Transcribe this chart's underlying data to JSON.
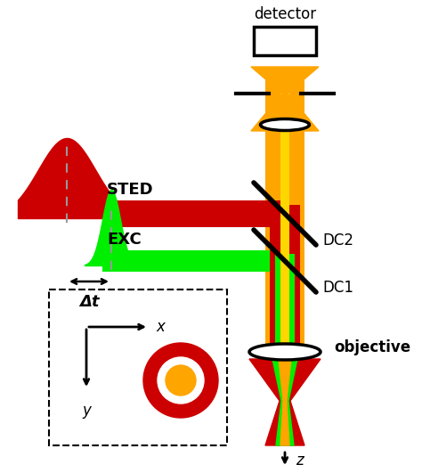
{
  "fig_width": 4.74,
  "fig_height": 5.31,
  "dpi": 100,
  "colors": {
    "red_dark": "#CC0000",
    "green_bright": "#00EE00",
    "orange": "#FFA500",
    "yellow": "#FFD700",
    "black": "#000000",
    "white": "#FFFFFF",
    "gray": "#999999"
  },
  "labels": {
    "detector": "detector",
    "STED": "STED",
    "EXC": "EXC",
    "DC2": "DC2",
    "DC1": "DC1",
    "objective": "objective",
    "delta_t": "Δt",
    "x": "x",
    "y": "y",
    "z": "z"
  }
}
